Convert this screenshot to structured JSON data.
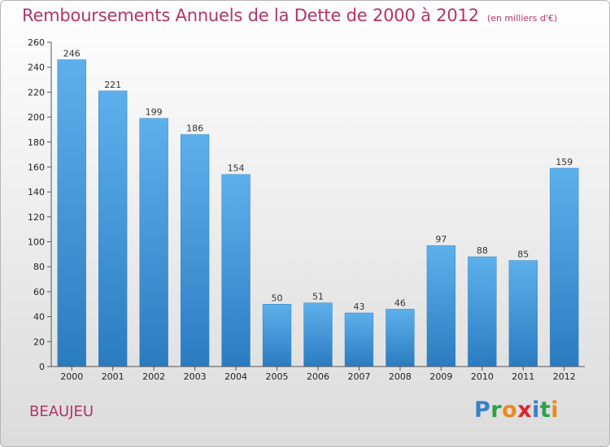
{
  "chart_data": {
    "type": "bar",
    "title": "Remboursements Annuels de la Dette de 2000 à 2012",
    "unit_note": "(en milliers d'€)",
    "categories": [
      "2000",
      "2001",
      "2002",
      "2003",
      "2004",
      "2005",
      "2006",
      "2007",
      "2008",
      "2009",
      "2010",
      "2011",
      "2012"
    ],
    "values": [
      246,
      221,
      199,
      186,
      154,
      50,
      51,
      43,
      46,
      97,
      88,
      85,
      159
    ],
    "ylim": [
      0,
      260
    ],
    "yticks": [
      0,
      20,
      40,
      60,
      80,
      100,
      120,
      140,
      160,
      180,
      200,
      220,
      240,
      260
    ],
    "xlabel": "",
    "ylabel": "",
    "grid": false,
    "bar_color_top": "#5eb0ec",
    "bar_color_bottom": "#2a7cc0"
  },
  "commune": "BEAUJEU",
  "logo": {
    "p": "P",
    "r": "r",
    "o": "o",
    "x": "x",
    "i1": "i",
    "t": "t",
    "i2": "i"
  },
  "colors": {
    "title": "#b3336b",
    "axis": "#555555"
  }
}
